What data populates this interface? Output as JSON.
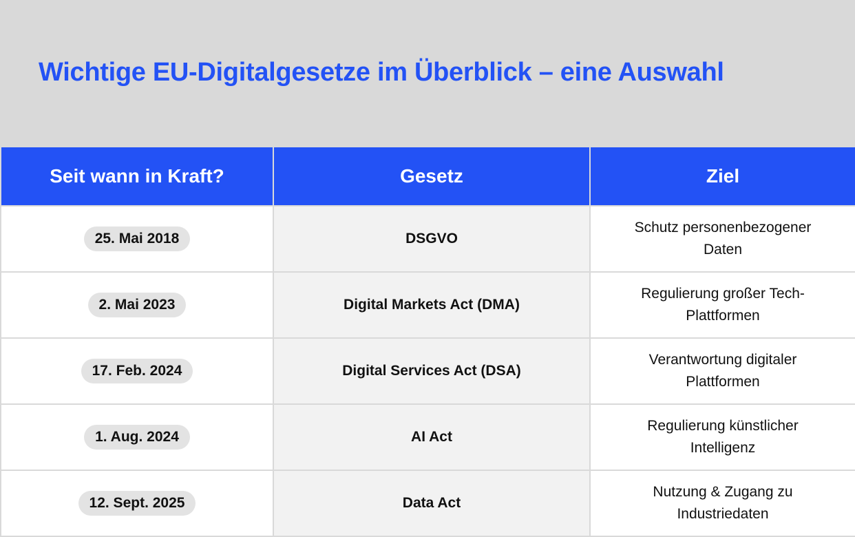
{
  "title": "Wichtige EU-Digitalgesetze im Überblick – eine Auswahl",
  "headers": [
    "Seit wann in Kraft?",
    "Gesetz",
    "Ziel"
  ],
  "rows": [
    {
      "date": "25. Mai 2018",
      "law": "DSGVO",
      "goal": "Schutz personenbezogener Daten"
    },
    {
      "date": "2. Mai 2023",
      "law": "Digital Markets Act (DMA)",
      "goal": "Regulierung großer Tech-Plattformen"
    },
    {
      "date": "17. Feb. 2024",
      "law": "Digital Services Act (DSA)",
      "goal": "Verantwortung digitaler Plattformen"
    },
    {
      "date": "1. Aug. 2024",
      "law": "AI Act",
      "goal": "Regulierung künstlicher Intelligenz"
    },
    {
      "date": "12. Sept. 2025",
      "law": "Data Act",
      "goal": "Nutzung & Zugang zu Industriedaten"
    }
  ]
}
